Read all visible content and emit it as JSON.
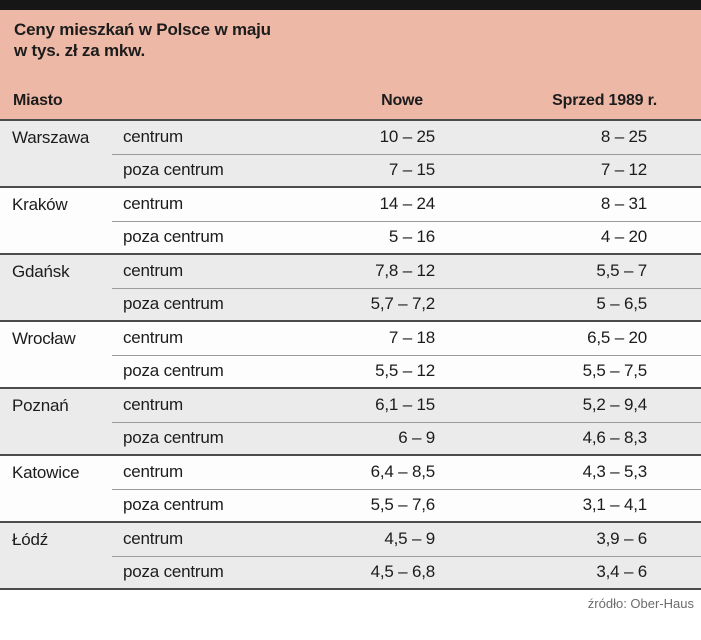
{
  "colors": {
    "top_bar": "#161616",
    "accent_pink": "#edb9a6",
    "row_alt": "#ebebeb",
    "row_base": "#fdfdfd",
    "line_thick": "#4c4c4c",
    "line_thin": "#9b9b9b",
    "text": "#1c1c1c",
    "source_text": "#6c6c6c"
  },
  "header": {
    "title_line1": "Ceny mieszkań w Polsce w maju",
    "title_line2": "w tys. zł za mkw.",
    "col_city": "Miasto",
    "col_area": "",
    "col_new": "Nowe",
    "col_old": "Sprzed 1989 r."
  },
  "table": {
    "groups": [
      {
        "city": "Warszawa",
        "rows": [
          {
            "area": "centrum",
            "new": "10 – 25",
            "old": "8 – 25"
          },
          {
            "area": "poza centrum",
            "new": "7 – 15",
            "old": "7 – 12"
          }
        ]
      },
      {
        "city": "Kraków",
        "rows": [
          {
            "area": "centrum",
            "new": "14 – 24",
            "old": "8 – 31"
          },
          {
            "area": "poza centrum",
            "new": "5 – 16",
            "old": "4 – 20"
          }
        ]
      },
      {
        "city": "Gdańsk",
        "rows": [
          {
            "area": "centrum",
            "new": "7,8 – 12",
            "old": "5,5 – 7"
          },
          {
            "area": "poza centrum",
            "new": "5,7 – 7,2",
            "old": "5 – 6,5"
          }
        ]
      },
      {
        "city": "Wrocław",
        "rows": [
          {
            "area": "centrum",
            "new": "7 – 18",
            "old": "6,5 – 20"
          },
          {
            "area": "poza centrum",
            "new": "5,5 – 12",
            "old": "5,5 – 7,5"
          }
        ]
      },
      {
        "city": "Poznań",
        "rows": [
          {
            "area": "centrum",
            "new": "6,1 – 15",
            "old": "5,2 – 9,4"
          },
          {
            "area": "poza centrum",
            "new": "6 – 9",
            "old": "4,6 – 8,3"
          }
        ]
      },
      {
        "city": "Katowice",
        "rows": [
          {
            "area": "centrum",
            "new": "6,4 – 8,5",
            "old": "4,3 – 5,3"
          },
          {
            "area": "poza centrum",
            "new": "5,5 – 7,6",
            "old": "3,1 – 4,1"
          }
        ]
      },
      {
        "city": "Łódź",
        "rows": [
          {
            "area": "centrum",
            "new": "4,5 – 9",
            "old": "3,9 – 6"
          },
          {
            "area": "poza centrum",
            "new": "4,5 – 6,8",
            "old": "3,4 – 6"
          }
        ]
      }
    ]
  },
  "footer": {
    "source": "źródło: Ober-Haus"
  },
  "chart_data": {
    "type": "table",
    "title": "Ceny mieszkań w Polsce w maju",
    "subtitle": "w tys. zł za mkw.",
    "columns": [
      "Miasto",
      "",
      "Nowe",
      "Sprzed 1989 r."
    ],
    "rows": [
      [
        "Warszawa",
        "centrum",
        "10 – 25",
        "8 – 25"
      ],
      [
        "Warszawa",
        "poza centrum",
        "7 – 15",
        "7 – 12"
      ],
      [
        "Kraków",
        "centrum",
        "14 – 24",
        "8 – 31"
      ],
      [
        "Kraków",
        "poza centrum",
        "5 – 16",
        "4 – 20"
      ],
      [
        "Gdańsk",
        "centrum",
        "7,8 – 12",
        "5,5 – 7"
      ],
      [
        "Gdańsk",
        "poza centrum",
        "5,7 – 7,2",
        "5 – 6,5"
      ],
      [
        "Wrocław",
        "centrum",
        "7 – 18",
        "6,5 – 20"
      ],
      [
        "Wrocław",
        "poza centrum",
        "5,5 – 12",
        "5,5 – 7,5"
      ],
      [
        "Poznań",
        "centrum",
        "6,1 – 15",
        "5,2 – 9,4"
      ],
      [
        "Poznań",
        "poza centrum",
        "6 – 9",
        "4,6 – 8,3"
      ],
      [
        "Katowice",
        "centrum",
        "6,4 – 8,5",
        "4,3 – 5,3"
      ],
      [
        "Katowice",
        "poza centrum",
        "5,5 – 7,6",
        "3,1 – 4,1"
      ],
      [
        "Łódź",
        "centrum",
        "4,5 – 9",
        "3,9 – 6"
      ],
      [
        "Łódź",
        "poza centrum",
        "4,5 – 6,8",
        "3,4 – 6"
      ]
    ],
    "source": "źródło: Ober-Haus",
    "layout_hints": {
      "group_zebra": "gray,white alternating per city group",
      "value_alignment": "right",
      "header_background": "#edb9a6"
    }
  }
}
